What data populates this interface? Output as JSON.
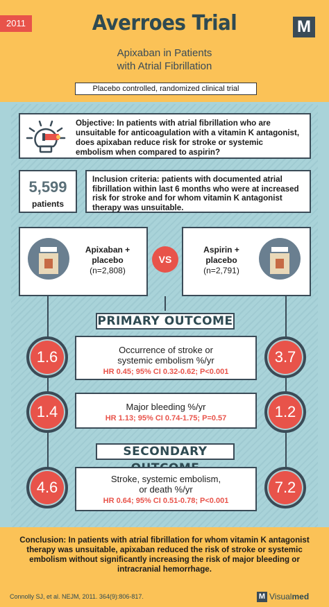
{
  "header": {
    "year": "2011",
    "title": "Averroes Trial",
    "logo": "M",
    "subtitle_line1": "Apixaban in Patients",
    "subtitle_line2": "with Atrial Fibrillation",
    "trial_type": "Placebo controlled, randomized clinical trial"
  },
  "objective": {
    "icon": "lightbulb-icon",
    "text": "Objective: In patients with atrial fibrillation who are unsuitable for anticoagulation with a vitamin K antagonist, does apixaban reduce risk for stroke or systemic embolism when compared to aspirin?"
  },
  "patients": {
    "count": "5,599",
    "label": "patients"
  },
  "inclusion": {
    "text": "Inclusion criteria: patients with documented atrial fibrillation within last 6 months who were at increased risk for stroke and for whom vitamin K antagonist therapy was unsuitable."
  },
  "arms": {
    "left": {
      "line1": "Apixaban +",
      "line2": "placebo",
      "n": "(n=2,808)"
    },
    "vs": "VS",
    "right": {
      "line1": "Aspirin +",
      "line2": "placebo",
      "n": "(n=2,791)"
    }
  },
  "primary_outcome": {
    "banner": "PRIMARY OUTCOME",
    "items": [
      {
        "left": "1.6",
        "title1": "Occurrence of stroke or",
        "title2": "systemic embolism %/yr",
        "stat": "HR 0.45; 95% CI 0.32-0.62; P<0.001",
        "right": "3.7"
      },
      {
        "left": "1.4",
        "title1": "Major bleeding %/yr",
        "title2": "",
        "stat": "HR 1.13; 95% CI 0.74-1.75; P=0.57",
        "right": "1.2"
      }
    ]
  },
  "secondary_outcome": {
    "banner": "SECONDARY OUTCOME",
    "item": {
      "left": "4.6",
      "title1": "Stroke, systemic embolism,",
      "title2": "or death %/yr",
      "stat": "HR 0.64; 95% CI 0.51-0.78; P<0.001",
      "right": "7.2"
    }
  },
  "conclusion": {
    "text": "Conclusion: In patients with atrial fibrillation for whom vitamin K antagonist therapy was unsuitable, apixaban reduced the risk of stroke or systemic embolism without significantly increasing the risk of major bleeding or intracranial hemorrhage."
  },
  "footer": {
    "citation": "Connolly SJ, et al. NEJM, 2011. 364(9):806-817.",
    "brand_logo": "M",
    "brand_visual": "Visual",
    "brand_med": "med"
  },
  "colors": {
    "accent_red": "#e8534a",
    "navy": "#3a4b57",
    "yellow": "#fbc257",
    "teal": "#a9d3d9"
  }
}
